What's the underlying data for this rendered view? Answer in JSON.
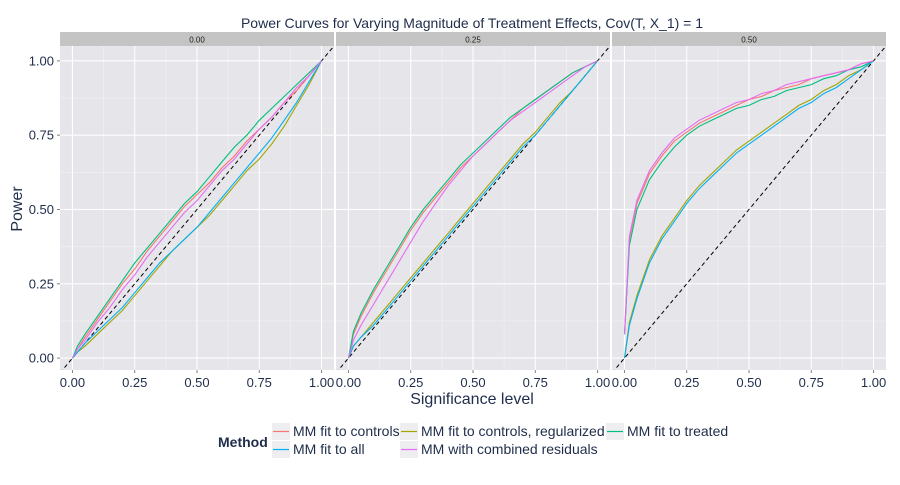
{
  "chart_data": {
    "type": "line",
    "title": "Power Curves for Varying Magnitude of Treatment Effects, Cov(T, X_1) = 1",
    "xlabel": "Significance level",
    "ylabel": "Power",
    "xlim": [
      -0.05,
      1.05
    ],
    "ylim": [
      -0.04,
      1.05
    ],
    "x_ticks": [
      "0.00",
      "0.25",
      "0.50",
      "0.75",
      "1.00"
    ],
    "y_ticks": [
      "0.00",
      "0.25",
      "0.50",
      "0.75",
      "1.00"
    ],
    "reference_line": "y = x (dashed)",
    "grid": true,
    "legend": {
      "title": "Method",
      "position": "bottom",
      "entries": [
        {
          "name": "MM fit to controls",
          "color": "#F8766D"
        },
        {
          "name": "MM fit to controls, regularized",
          "color": "#A3A500"
        },
        {
          "name": "MM fit to treated",
          "color": "#00BF7D"
        },
        {
          "name": "MM fit to all",
          "color": "#00B0F6"
        },
        {
          "name": "MM with combined residuals",
          "color": "#E76BF3"
        }
      ]
    },
    "x": [
      0,
      0.02,
      0.05,
      0.1,
      0.15,
      0.2,
      0.25,
      0.3,
      0.35,
      0.4,
      0.45,
      0.5,
      0.55,
      0.6,
      0.65,
      0.7,
      0.75,
      0.8,
      0.85,
      0.9,
      0.95,
      1.0
    ],
    "panels": [
      {
        "label": "0.00",
        "series": [
          {
            "name": "MM fit to controls",
            "values": [
              0,
              0.03,
              0.07,
              0.13,
              0.19,
              0.25,
              0.3,
              0.36,
              0.41,
              0.46,
              0.51,
              0.55,
              0.59,
              0.64,
              0.68,
              0.73,
              0.77,
              0.81,
              0.86,
              0.9,
              0.95,
              1.0
            ]
          },
          {
            "name": "MM fit to controls, regularized",
            "values": [
              0,
              0.02,
              0.04,
              0.08,
              0.12,
              0.16,
              0.21,
              0.26,
              0.31,
              0.36,
              0.4,
              0.44,
              0.48,
              0.53,
              0.58,
              0.63,
              0.67,
              0.72,
              0.78,
              0.85,
              0.92,
              1.0
            ]
          },
          {
            "name": "MM fit to treated",
            "values": [
              0,
              0.04,
              0.08,
              0.14,
              0.2,
              0.26,
              0.32,
              0.37,
              0.42,
              0.47,
              0.52,
              0.56,
              0.61,
              0.66,
              0.71,
              0.75,
              0.8,
              0.84,
              0.88,
              0.92,
              0.96,
              1.0
            ]
          },
          {
            "name": "MM fit to all",
            "values": [
              0,
              0.02,
              0.05,
              0.09,
              0.13,
              0.17,
              0.22,
              0.27,
              0.32,
              0.36,
              0.4,
              0.44,
              0.49,
              0.54,
              0.59,
              0.64,
              0.69,
              0.74,
              0.8,
              0.86,
              0.93,
              1.0
            ]
          },
          {
            "name": "MM with combined residuals",
            "values": [
              0,
              0.03,
              0.06,
              0.12,
              0.17,
              0.23,
              0.28,
              0.34,
              0.39,
              0.44,
              0.49,
              0.53,
              0.58,
              0.63,
              0.67,
              0.72,
              0.77,
              0.81,
              0.86,
              0.91,
              0.95,
              1.0
            ]
          }
        ]
      },
      {
        "label": "0.25",
        "series": [
          {
            "name": "MM fit to controls",
            "values": [
              0,
              0.08,
              0.14,
              0.22,
              0.29,
              0.36,
              0.43,
              0.49,
              0.54,
              0.59,
              0.64,
              0.68,
              0.72,
              0.76,
              0.8,
              0.84,
              0.87,
              0.9,
              0.93,
              0.96,
              0.98,
              1.0
            ]
          },
          {
            "name": "MM fit to controls, regularized",
            "values": [
              0,
              0.04,
              0.07,
              0.12,
              0.17,
              0.22,
              0.27,
              0.32,
              0.37,
              0.42,
              0.47,
              0.52,
              0.57,
              0.62,
              0.67,
              0.72,
              0.76,
              0.81,
              0.86,
              0.9,
              0.95,
              1.0
            ]
          },
          {
            "name": "MM fit to treated",
            "values": [
              0,
              0.09,
              0.15,
              0.23,
              0.3,
              0.37,
              0.44,
              0.5,
              0.55,
              0.6,
              0.65,
              0.69,
              0.73,
              0.77,
              0.81,
              0.84,
              0.87,
              0.9,
              0.93,
              0.96,
              0.98,
              1.0
            ]
          },
          {
            "name": "MM fit to all",
            "values": [
              0,
              0.04,
              0.07,
              0.11,
              0.16,
              0.21,
              0.26,
              0.31,
              0.36,
              0.41,
              0.46,
              0.51,
              0.56,
              0.61,
              0.66,
              0.71,
              0.75,
              0.8,
              0.85,
              0.9,
              0.95,
              1.0
            ]
          },
          {
            "name": "MM with combined residuals",
            "values": [
              0,
              0.06,
              0.11,
              0.18,
              0.25,
              0.32,
              0.39,
              0.46,
              0.52,
              0.58,
              0.63,
              0.68,
              0.72,
              0.76,
              0.8,
              0.83,
              0.86,
              0.89,
              0.92,
              0.95,
              0.98,
              1.0
            ]
          }
        ]
      },
      {
        "label": "0.50",
        "series": [
          {
            "name": "MM fit to controls",
            "values": [
              0.08,
              0.4,
              0.52,
              0.62,
              0.68,
              0.73,
              0.76,
              0.79,
              0.81,
              0.83,
              0.85,
              0.87,
              0.88,
              0.9,
              0.91,
              0.92,
              0.94,
              0.95,
              0.96,
              0.97,
              0.99,
              1.0
            ]
          },
          {
            "name": "MM fit to controls, regularized",
            "values": [
              0,
              0.12,
              0.21,
              0.33,
              0.41,
              0.47,
              0.53,
              0.58,
              0.62,
              0.66,
              0.7,
              0.73,
              0.76,
              0.79,
              0.82,
              0.85,
              0.87,
              0.9,
              0.92,
              0.95,
              0.97,
              1.0
            ]
          },
          {
            "name": "MM fit to treated",
            "values": [
              0.08,
              0.38,
              0.5,
              0.6,
              0.66,
              0.71,
              0.75,
              0.78,
              0.8,
              0.82,
              0.84,
              0.85,
              0.87,
              0.88,
              0.9,
              0.91,
              0.92,
              0.94,
              0.95,
              0.97,
              0.98,
              1.0
            ]
          },
          {
            "name": "MM fit to all",
            "values": [
              0,
              0.11,
              0.2,
              0.32,
              0.4,
              0.46,
              0.52,
              0.57,
              0.61,
              0.65,
              0.69,
              0.72,
              0.75,
              0.78,
              0.81,
              0.84,
              0.86,
              0.89,
              0.91,
              0.94,
              0.97,
              1.0
            ]
          },
          {
            "name": "MM with combined residuals",
            "values": [
              0.08,
              0.41,
              0.53,
              0.63,
              0.69,
              0.74,
              0.77,
              0.8,
              0.82,
              0.84,
              0.86,
              0.87,
              0.89,
              0.9,
              0.92,
              0.93,
              0.94,
              0.95,
              0.96,
              0.97,
              0.99,
              1.0
            ]
          }
        ]
      }
    ]
  }
}
